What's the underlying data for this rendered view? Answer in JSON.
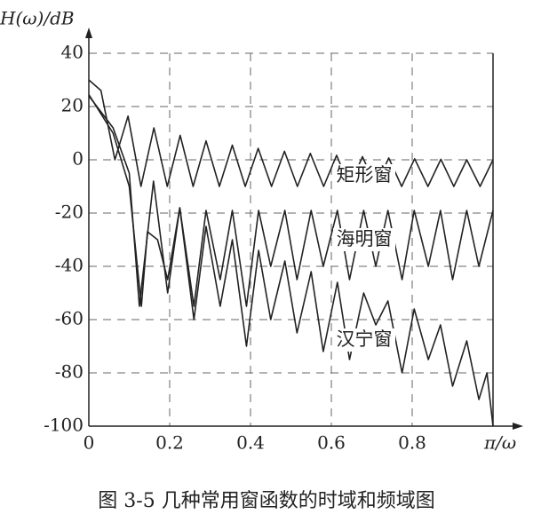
{
  "chart_data": {
    "type": "line",
    "caption": "图 3-5   几种常用窗函数的时域和频域图",
    "y_label": "H(ω)/dB",
    "x_label": "π/ω",
    "xlim": [
      0,
      1
    ],
    "ylim": [
      -100,
      40
    ],
    "xticks": [
      0,
      0.2,
      0.4,
      0.6,
      0.8
    ],
    "yticks": [
      40,
      20,
      0,
      -20,
      -40,
      -60,
      -80,
      -100
    ],
    "grid": true,
    "series": [
      {
        "name": "矩形窗",
        "color": "#222222",
        "x": [
          0,
          0.03,
          0.0645,
          0.097,
          0.129,
          0.161,
          0.194,
          0.226,
          0.258,
          0.29,
          0.323,
          0.355,
          0.387,
          0.419,
          0.452,
          0.484,
          0.516,
          0.548,
          0.581,
          0.613,
          0.645,
          0.677,
          0.71,
          0.742,
          0.774,
          0.806,
          0.839,
          0.871,
          0.903,
          0.935,
          0.968,
          1.0
        ],
        "values": [
          30,
          26,
          0,
          16.4,
          -10,
          12,
          -10,
          9.2,
          -10,
          7.1,
          -10,
          5.5,
          -10,
          4.3,
          -10,
          3.2,
          -10,
          2.4,
          -10,
          1.7,
          -10,
          1.2,
          -10,
          0.7,
          -10,
          0.4,
          -10,
          0.2,
          -10,
          0,
          -10,
          0
        ]
      },
      {
        "name": "海明窗",
        "color": "#222222",
        "x": [
          0,
          0.06,
          0.1,
          0.13,
          0.145,
          0.17,
          0.195,
          0.225,
          0.26,
          0.29,
          0.325,
          0.355,
          0.39,
          0.42,
          0.45,
          0.485,
          0.515,
          0.55,
          0.58,
          0.615,
          0.645,
          0.68,
          0.71,
          0.74,
          0.775,
          0.805,
          0.84,
          0.87,
          0.9,
          0.935,
          0.965,
          1.0
        ],
        "values": [
          24.5,
          10,
          -10,
          -55,
          -27,
          -30,
          -45,
          -18,
          -55,
          -19,
          -45,
          -19,
          -55,
          -19,
          -40,
          -19,
          -45,
          -19,
          -40,
          -19,
          -45,
          -19,
          -40,
          -19,
          -45,
          -19,
          -40,
          -19,
          -45,
          -19,
          -40,
          -19
        ]
      },
      {
        "name": "汉宁窗",
        "color": "#222222",
        "x": [
          0,
          0.06,
          0.1,
          0.125,
          0.16,
          0.195,
          0.225,
          0.26,
          0.29,
          0.325,
          0.355,
          0.39,
          0.42,
          0.45,
          0.485,
          0.515,
          0.55,
          0.58,
          0.615,
          0.645,
          0.68,
          0.71,
          0.74,
          0.775,
          0.805,
          0.84,
          0.87,
          0.9,
          0.935,
          0.965,
          0.985,
          1.0
        ],
        "values": [
          24,
          12,
          -5,
          -55,
          -8,
          -50,
          -18,
          -60,
          -25,
          -55,
          -30,
          -70,
          -34,
          -60,
          -38,
          -65,
          -42,
          -72,
          -46,
          -75,
          -50,
          -62,
          -53,
          -80,
          -56,
          -75,
          -62,
          -85,
          -68,
          -90,
          -80,
          -100
        ]
      }
    ]
  }
}
